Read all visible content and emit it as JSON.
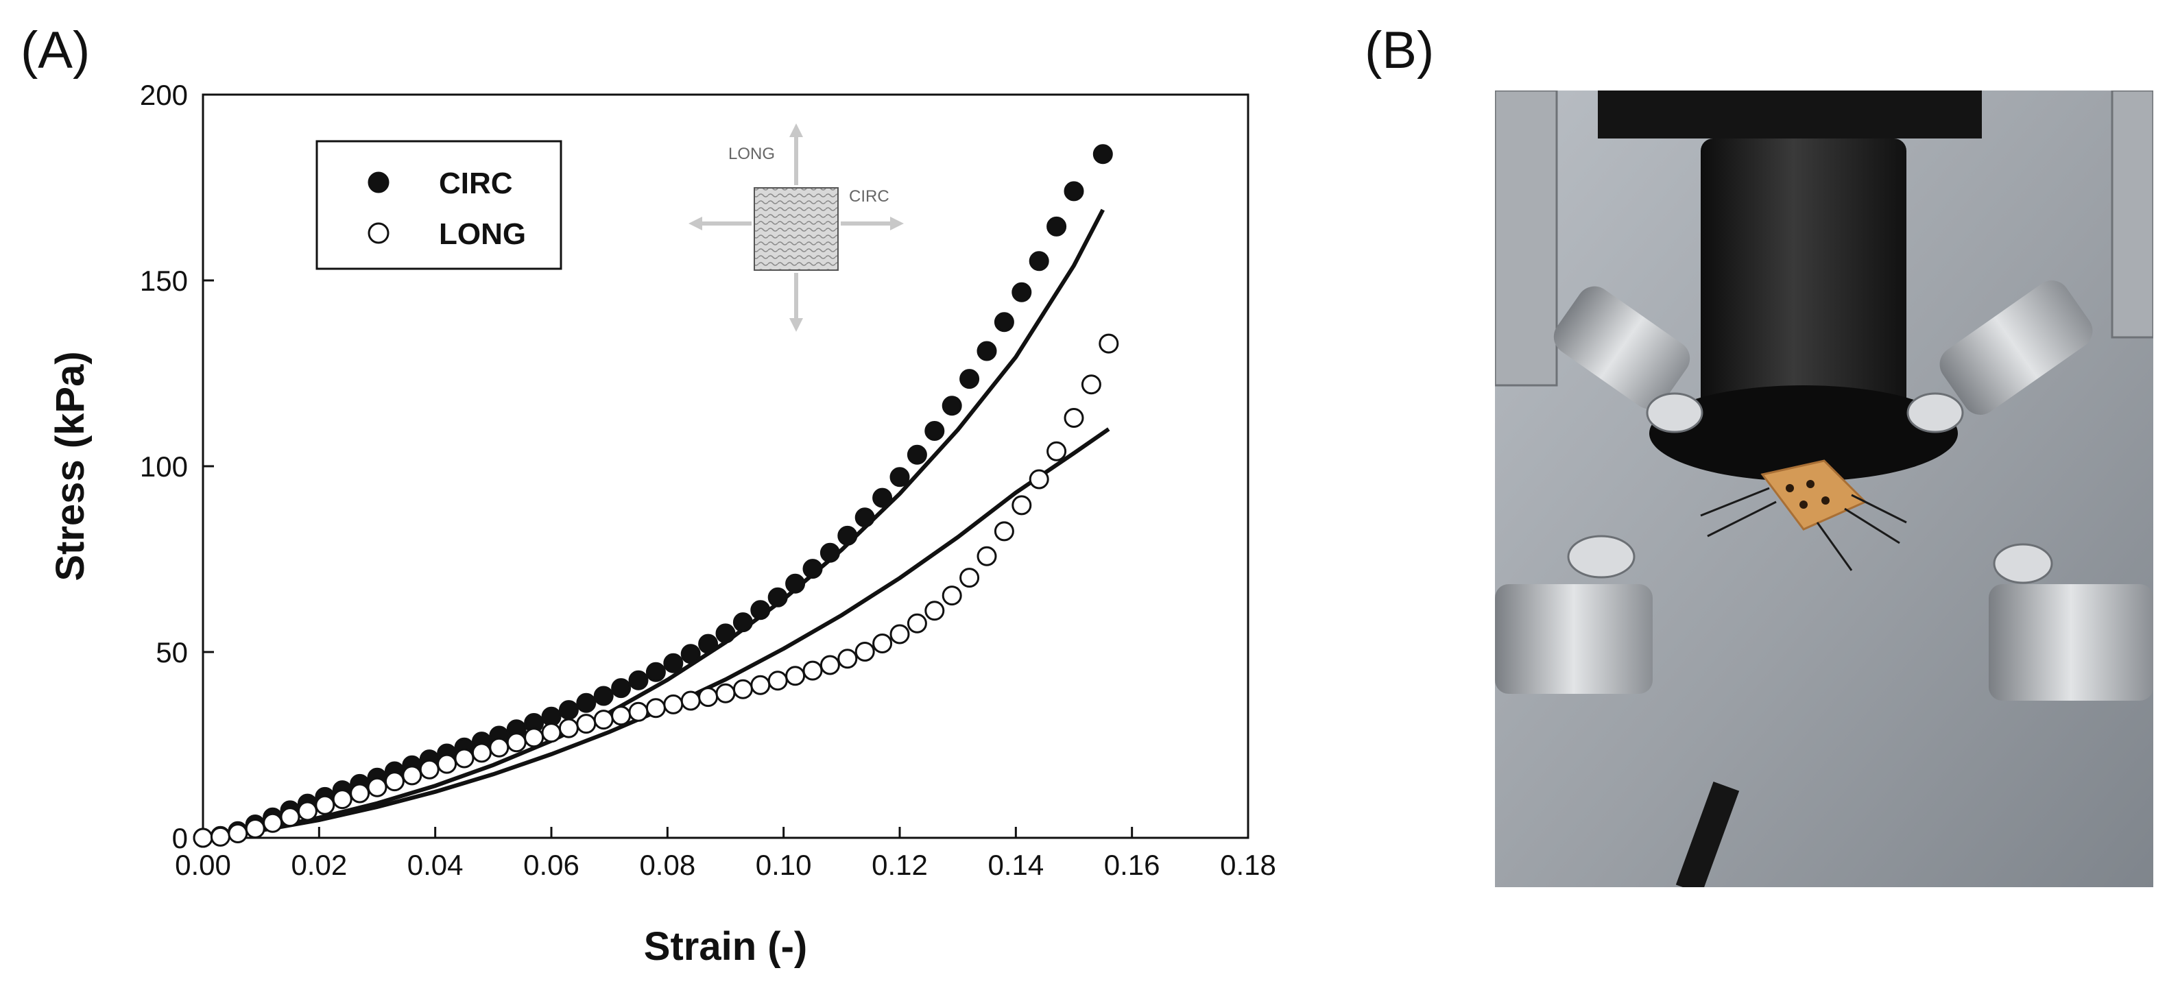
{
  "panel_labels": {
    "a": "(A)",
    "b": "(B)"
  },
  "chart_data": {
    "type": "scatter",
    "xlabel": "Strain (-)",
    "ylabel": "Stress (kPa)",
    "xlim": [
      0,
      0.18
    ],
    "ylim": [
      0,
      200
    ],
    "x_ticks": [
      "0.00",
      "0.02",
      "0.04",
      "0.06",
      "0.08",
      "0.10",
      "0.12",
      "0.14",
      "0.16",
      "0.18"
    ],
    "y_ticks": [
      "0",
      "50",
      "100",
      "150",
      "200"
    ],
    "legend_position": "top-left",
    "grid": false,
    "series": [
      {
        "name": "CIRC",
        "marker": "filled-circle",
        "points": [
          [
            0.0,
            0.0
          ],
          [
            0.003,
            0.5
          ],
          [
            0.006,
            1.8
          ],
          [
            0.009,
            3.6
          ],
          [
            0.012,
            5.5
          ],
          [
            0.015,
            7.4
          ],
          [
            0.018,
            9.2
          ],
          [
            0.021,
            11.0
          ],
          [
            0.024,
            12.8
          ],
          [
            0.027,
            14.5
          ],
          [
            0.03,
            16.2
          ],
          [
            0.033,
            17.9
          ],
          [
            0.036,
            19.5
          ],
          [
            0.039,
            21.1
          ],
          [
            0.042,
            22.7
          ],
          [
            0.045,
            24.3
          ],
          [
            0.048,
            25.9
          ],
          [
            0.051,
            27.5
          ],
          [
            0.054,
            29.2
          ],
          [
            0.057,
            30.9
          ],
          [
            0.06,
            32.6
          ],
          [
            0.063,
            34.4
          ],
          [
            0.066,
            36.3
          ],
          [
            0.069,
            38.2
          ],
          [
            0.072,
            40.3
          ],
          [
            0.075,
            42.4
          ],
          [
            0.078,
            44.6
          ],
          [
            0.081,
            47.0
          ],
          [
            0.084,
            49.5
          ],
          [
            0.087,
            52.2
          ],
          [
            0.09,
            55.0
          ],
          [
            0.093,
            58.0
          ],
          [
            0.096,
            61.3
          ],
          [
            0.099,
            64.7
          ],
          [
            0.102,
            68.4
          ],
          [
            0.105,
            72.4
          ],
          [
            0.108,
            76.7
          ],
          [
            0.111,
            81.3
          ],
          [
            0.114,
            86.2
          ],
          [
            0.117,
            91.5
          ],
          [
            0.12,
            97.1
          ],
          [
            0.123,
            103.1
          ],
          [
            0.126,
            109.5
          ],
          [
            0.129,
            116.3
          ],
          [
            0.132,
            123.5
          ],
          [
            0.135,
            131.0
          ],
          [
            0.138,
            138.8
          ],
          [
            0.141,
            146.8
          ],
          [
            0.144,
            155.2
          ],
          [
            0.147,
            164.5
          ],
          [
            0.15,
            174.0
          ],
          [
            0.155,
            184.0
          ]
        ],
        "fit": [
          [
            0.0,
            0.0
          ],
          [
            0.01,
            2.2
          ],
          [
            0.02,
            5.4
          ],
          [
            0.03,
            9.3
          ],
          [
            0.04,
            14.0
          ],
          [
            0.05,
            19.6
          ],
          [
            0.06,
            26.1
          ],
          [
            0.07,
            33.7
          ],
          [
            0.08,
            42.5
          ],
          [
            0.09,
            52.6
          ],
          [
            0.1,
            64.2
          ],
          [
            0.11,
            77.5
          ],
          [
            0.12,
            92.6
          ],
          [
            0.13,
            109.8
          ],
          [
            0.14,
            129.4
          ],
          [
            0.15,
            154.0
          ],
          [
            0.155,
            169.0
          ]
        ]
      },
      {
        "name": "LONG",
        "marker": "open-circle",
        "points": [
          [
            0.0,
            0.0
          ],
          [
            0.003,
            0.3
          ],
          [
            0.006,
            1.2
          ],
          [
            0.009,
            2.5
          ],
          [
            0.012,
            4.0
          ],
          [
            0.015,
            5.6
          ],
          [
            0.018,
            7.2
          ],
          [
            0.021,
            8.8
          ],
          [
            0.024,
            10.4
          ],
          [
            0.027,
            12.0
          ],
          [
            0.03,
            13.6
          ],
          [
            0.033,
            15.2
          ],
          [
            0.036,
            16.8
          ],
          [
            0.039,
            18.4
          ],
          [
            0.042,
            19.9
          ],
          [
            0.045,
            21.4
          ],
          [
            0.048,
            22.9
          ],
          [
            0.051,
            24.3
          ],
          [
            0.054,
            25.7
          ],
          [
            0.057,
            27.0
          ],
          [
            0.06,
            28.3
          ],
          [
            0.063,
            29.5
          ],
          [
            0.066,
            30.7
          ],
          [
            0.069,
            31.8
          ],
          [
            0.072,
            32.9
          ],
          [
            0.075,
            33.9
          ],
          [
            0.078,
            34.9
          ],
          [
            0.081,
            35.9
          ],
          [
            0.084,
            36.9
          ],
          [
            0.087,
            37.9
          ],
          [
            0.09,
            38.9
          ],
          [
            0.093,
            40.0
          ],
          [
            0.096,
            41.1
          ],
          [
            0.099,
            42.3
          ],
          [
            0.102,
            43.6
          ],
          [
            0.105,
            45.0
          ],
          [
            0.108,
            46.5
          ],
          [
            0.111,
            48.2
          ],
          [
            0.114,
            50.1
          ],
          [
            0.117,
            52.3
          ],
          [
            0.12,
            54.8
          ],
          [
            0.123,
            57.7
          ],
          [
            0.126,
            61.1
          ],
          [
            0.129,
            65.2
          ],
          [
            0.132,
            70.0
          ],
          [
            0.135,
            75.8
          ],
          [
            0.138,
            82.5
          ],
          [
            0.141,
            89.5
          ],
          [
            0.144,
            96.5
          ],
          [
            0.147,
            104.0
          ],
          [
            0.15,
            113.0
          ],
          [
            0.153,
            122.0
          ],
          [
            0.156,
            133.0
          ]
        ],
        "fit": [
          [
            0.0,
            0.0
          ],
          [
            0.01,
            2.0
          ],
          [
            0.02,
            4.8
          ],
          [
            0.03,
            8.3
          ],
          [
            0.04,
            12.4
          ],
          [
            0.05,
            17.1
          ],
          [
            0.06,
            22.5
          ],
          [
            0.07,
            28.5
          ],
          [
            0.08,
            35.2
          ],
          [
            0.09,
            42.6
          ],
          [
            0.1,
            50.9
          ],
          [
            0.11,
            59.9
          ],
          [
            0.12,
            69.9
          ],
          [
            0.13,
            80.9
          ],
          [
            0.14,
            92.9
          ],
          [
            0.15,
            103.5
          ],
          [
            0.156,
            110.0
          ]
        ]
      }
    ],
    "inset": {
      "long_label": "LONG",
      "circ_label": "CIRC"
    }
  }
}
